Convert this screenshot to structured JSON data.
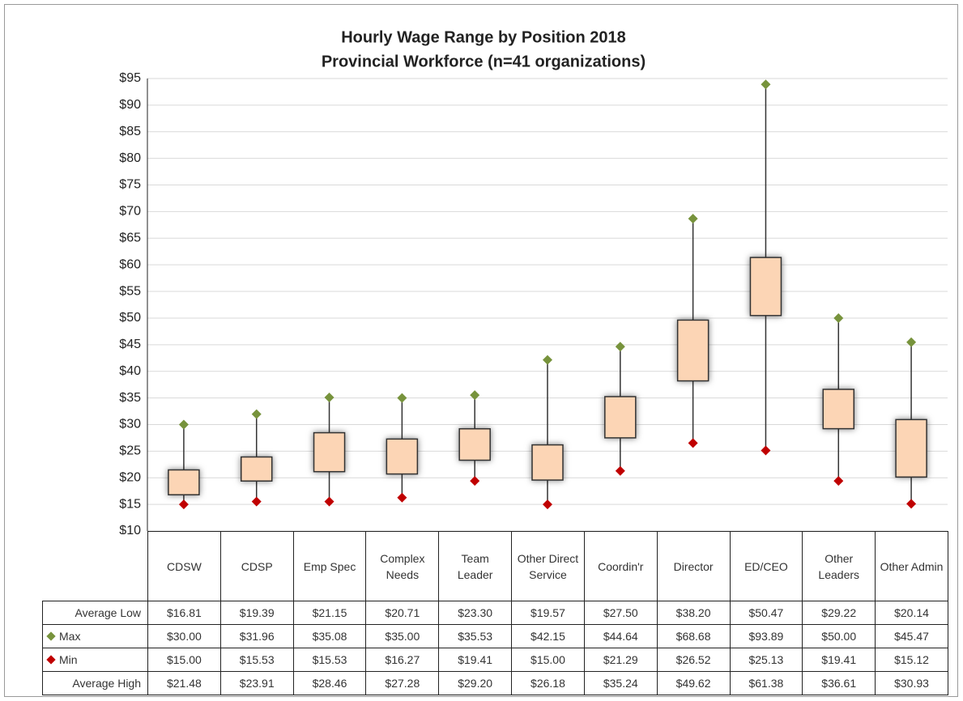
{
  "chart_data": {
    "type": "box",
    "title": "Hourly Wage Range by Position 2018",
    "subtitle": "Provincial Workforce (n=41 organizations)",
    "categories": [
      "CDSW",
      "CDSP",
      "Emp Spec",
      "Complex Needs",
      "Team Leader",
      "Other Direct Service",
      "Coordin'r",
      "Director",
      "ED/CEO",
      "Other Leaders",
      "Other Admin"
    ],
    "series": [
      {
        "name": "Average Low",
        "color": "#fcd5b5",
        "values": [
          16.81,
          19.39,
          21.15,
          20.71,
          23.3,
          19.57,
          27.5,
          38.2,
          50.47,
          29.22,
          20.14
        ],
        "value_labels": [
          "$16.81",
          "$19.39",
          "$21.15",
          "$20.71",
          "$23.30",
          "$19.57",
          "$27.50",
          "$38.20",
          "$50.47",
          "$29.22",
          "$20.14"
        ]
      },
      {
        "name": "Max",
        "color": "#77933c",
        "values": [
          30.0,
          31.96,
          35.08,
          35.0,
          35.53,
          42.15,
          44.64,
          68.68,
          93.89,
          50.0,
          45.47
        ],
        "value_labels": [
          "$30.00",
          "$31.96",
          "$35.08",
          "$35.00",
          "$35.53",
          "$42.15",
          "$44.64",
          "$68.68",
          "$93.89",
          "$50.00",
          "$45.47"
        ]
      },
      {
        "name": "Min",
        "color": "#c00000",
        "values": [
          15.0,
          15.53,
          15.53,
          16.27,
          19.41,
          15.0,
          21.29,
          26.52,
          25.13,
          19.41,
          15.12
        ],
        "value_labels": [
          "$15.00",
          "$15.53",
          "$15.53",
          "$16.27",
          "$19.41",
          "$15.00",
          "$21.29",
          "$26.52",
          "$25.13",
          "$19.41",
          "$15.12"
        ]
      },
      {
        "name": "Average High",
        "color": "#fcd5b5",
        "values": [
          21.48,
          23.91,
          28.46,
          27.28,
          29.2,
          26.18,
          35.24,
          49.62,
          61.38,
          36.61,
          30.93
        ],
        "value_labels": [
          "$21.48",
          "$23.91",
          "$28.46",
          "$27.28",
          "$29.20",
          "$26.18",
          "$35.24",
          "$49.62",
          "$61.38",
          "$36.61",
          "$30.93"
        ]
      }
    ],
    "ylim": [
      10,
      95
    ],
    "yticks": [
      {
        "value": 10,
        "label": "$10"
      },
      {
        "value": 15,
        "label": "$15"
      },
      {
        "value": 20,
        "label": "$20"
      },
      {
        "value": 25,
        "label": "$25"
      },
      {
        "value": 30,
        "label": "$30"
      },
      {
        "value": 35,
        "label": "$35"
      },
      {
        "value": 40,
        "label": "$40"
      },
      {
        "value": 45,
        "label": "$45"
      },
      {
        "value": 50,
        "label": "$50"
      },
      {
        "value": 55,
        "label": "$55"
      },
      {
        "value": 60,
        "label": "$60"
      },
      {
        "value": 65,
        "label": "$65"
      },
      {
        "value": 70,
        "label": "$70"
      },
      {
        "value": 75,
        "label": "$75"
      },
      {
        "value": 80,
        "label": "$80"
      },
      {
        "value": 85,
        "label": "$85"
      },
      {
        "value": 90,
        "label": "$90"
      },
      {
        "value": 95,
        "label": "$95"
      }
    ],
    "grid": true
  }
}
